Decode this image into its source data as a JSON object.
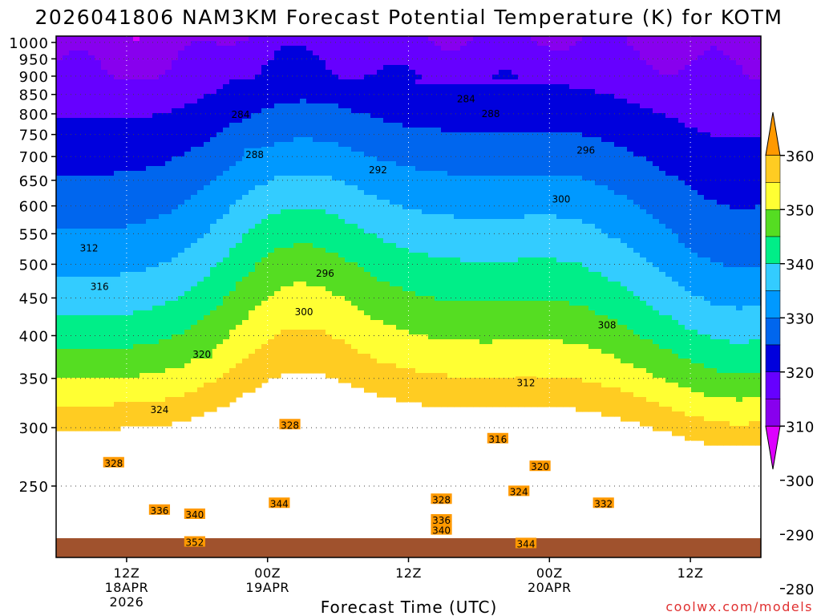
{
  "chart_data": {
    "type": "heatmap",
    "title": "2026041806 NAM3KM Forecast Potential Temperature (K) for KOTM",
    "xlabel": "Forecast Time (UTC)",
    "ylabel": "",
    "credit": "coolwx.com/models",
    "y_axis": {
      "scale": "log-pressure",
      "range_hPa": [
        1020,
        200
      ],
      "ticks": [
        250,
        300,
        350,
        400,
        450,
        500,
        550,
        600,
        650,
        700,
        750,
        800,
        850,
        900,
        950,
        1000
      ]
    },
    "x_axis": {
      "range_hours": [
        0,
        60
      ],
      "ticks": [
        {
          "hour": 6,
          "lines": [
            "12Z",
            "18APR",
            "2026"
          ]
        },
        {
          "hour": 18,
          "lines": [
            "00Z",
            "19APR"
          ]
        },
        {
          "hour": 30,
          "lines": [
            "12Z"
          ]
        },
        {
          "hour": 42,
          "lines": [
            "00Z",
            "20APR"
          ]
        },
        {
          "hour": 54,
          "lines": [
            "12Z"
          ]
        }
      ]
    },
    "colorbar": {
      "levels": [
        280,
        290,
        300,
        310,
        320,
        330,
        340,
        350,
        360
      ],
      "colors": [
        "#dd00ff",
        "#8800ee",
        "#6600ff",
        "#0000dd",
        "#0066ee",
        "#0099ff",
        "#33ccff",
        "#00ee88",
        "#55dd22",
        "#ffff33",
        "#ffcc22",
        "#ff9900"
      ]
    },
    "contour_interval": 2,
    "contour_labels": [
      {
        "value": "352",
        "hour": 11.8,
        "p": 210
      },
      {
        "value": "344",
        "hour": 40.0,
        "p": 209
      },
      {
        "value": "340",
        "hour": 32.8,
        "p": 218
      },
      {
        "value": "336",
        "hour": 32.8,
        "p": 225
      },
      {
        "value": "336",
        "hour": 8.8,
        "p": 232
      },
      {
        "value": "340",
        "hour": 11.8,
        "p": 229
      },
      {
        "value": "344",
        "hour": 19.0,
        "p": 237
      },
      {
        "value": "328",
        "hour": 32.8,
        "p": 240
      },
      {
        "value": "324",
        "hour": 39.4,
        "p": 246
      },
      {
        "value": "332",
        "hour": 46.6,
        "p": 237
      },
      {
        "value": "320",
        "hour": 41.2,
        "p": 266
      },
      {
        "value": "328",
        "hour": 4.9,
        "p": 269
      },
      {
        "value": "316",
        "hour": 37.6,
        "p": 290
      },
      {
        "value": "328",
        "hour": 19.9,
        "p": 303
      },
      {
        "value": "324",
        "hour": 8.8,
        "p": 318
      },
      {
        "value": "312",
        "hour": 40.0,
        "p": 346
      },
      {
        "value": "320",
        "hour": 12.4,
        "p": 378
      },
      {
        "value": "308",
        "hour": 46.9,
        "p": 414
      },
      {
        "value": "300",
        "hour": 21.1,
        "p": 432
      },
      {
        "value": "316",
        "hour": 3.7,
        "p": 467
      },
      {
        "value": "296",
        "hour": 22.9,
        "p": 487
      },
      {
        "value": "312",
        "hour": 2.8,
        "p": 527
      },
      {
        "value": "300",
        "hour": 43.0,
        "p": 614
      },
      {
        "value": "292",
        "hour": 27.4,
        "p": 673
      },
      {
        "value": "288",
        "hour": 16.9,
        "p": 706
      },
      {
        "value": "296",
        "hour": 45.1,
        "p": 715
      },
      {
        "value": "284",
        "hour": 15.7,
        "p": 800
      },
      {
        "value": "288",
        "hour": 37.0,
        "p": 802
      },
      {
        "value": "284",
        "hour": 34.9,
        "p": 840
      }
    ]
  }
}
